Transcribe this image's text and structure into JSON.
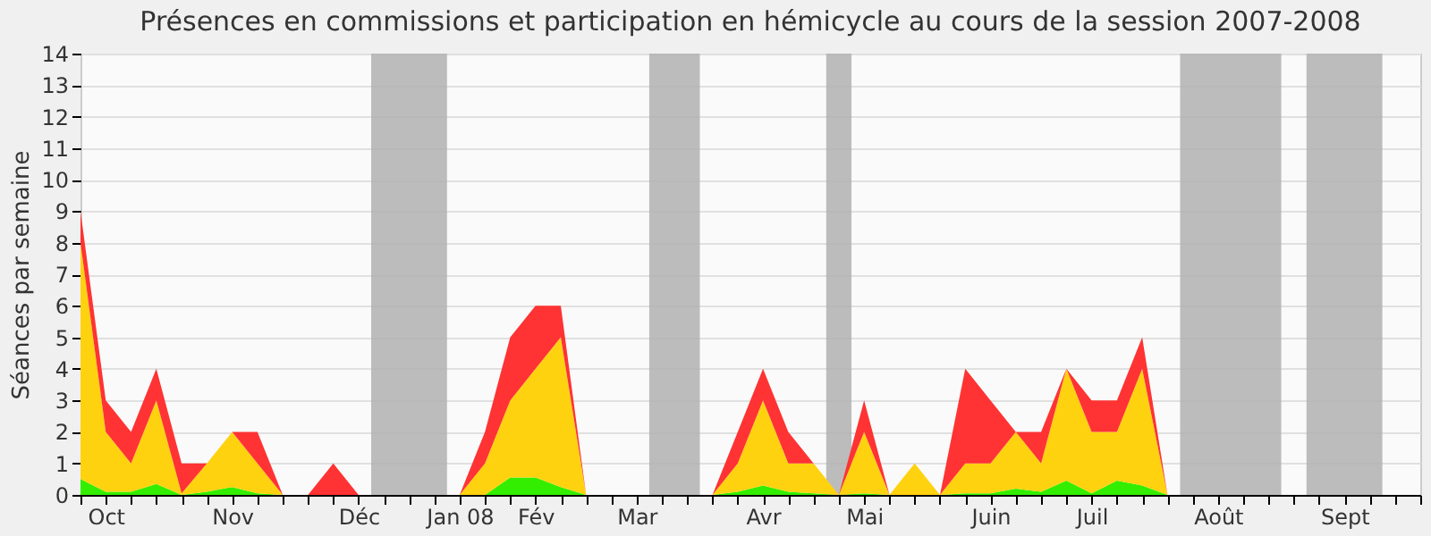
{
  "chart_data": {
    "type": "area",
    "stacked": true,
    "title": "Présences en commissions et participation en hémicycle au cours de la session 2007-2008",
    "ylabel": "Séances par semaine",
    "x": [
      "2007-10-01",
      "2007-10-08",
      "2007-10-15",
      "2007-10-22",
      "2007-10-29",
      "2007-11-05",
      "2007-11-12",
      "2007-11-19",
      "2007-11-26",
      "2007-12-03",
      "2007-12-10",
      "2007-12-17",
      "2007-12-24",
      "2007-12-31",
      "2008-01-07",
      "2008-01-14",
      "2008-01-21",
      "2008-01-28",
      "2008-02-04",
      "2008-02-11",
      "2008-02-18",
      "2008-02-25",
      "2008-03-03",
      "2008-03-10",
      "2008-03-17",
      "2008-03-24",
      "2008-03-31",
      "2008-04-07",
      "2008-04-14",
      "2008-04-21",
      "2008-04-28",
      "2008-05-05",
      "2008-05-12",
      "2008-05-19",
      "2008-05-26",
      "2008-06-02",
      "2008-06-09",
      "2008-06-16",
      "2008-06-23",
      "2008-06-30",
      "2008-07-07",
      "2008-07-14",
      "2008-07-21",
      "2008-07-28",
      "2008-08-04",
      "2008-08-11",
      "2008-08-18",
      "2008-08-25",
      "2008-09-01",
      "2008-09-08",
      "2008-09-15",
      "2008-09-22",
      "2008-09-29",
      "2008-10-06"
    ],
    "series": [
      {
        "color": "#33ee00",
        "values": [
          0.5,
          0.1,
          0.1,
          0.35,
          0,
          0.1,
          0.25,
          0.05,
          0,
          0,
          0,
          0,
          0,
          0,
          0,
          0,
          0,
          0.55,
          0.55,
          0.25,
          0,
          0,
          0,
          0,
          0,
          0,
          0.1,
          0.3,
          0.1,
          0.05,
          0,
          0.05,
          0,
          0,
          0,
          0.05,
          0.05,
          0.2,
          0.1,
          0.45,
          0.05,
          0.45,
          0.3,
          0,
          0,
          0,
          0,
          0,
          0,
          0,
          0,
          0,
          0,
          0
        ]
      },
      {
        "color": "#ffd20f",
        "values": [
          7.5,
          1.9,
          0.9,
          2.65,
          0.05,
          0.9,
          1.75,
          0.95,
          0,
          0,
          0,
          0,
          0,
          0,
          0,
          0,
          1,
          2.45,
          3.45,
          4.75,
          0,
          0,
          0,
          0,
          0,
          0,
          0.9,
          2.7,
          0.9,
          0.95,
          0,
          1.95,
          0,
          1,
          0,
          0.95,
          0.95,
          1.8,
          0.9,
          3.55,
          1.95,
          1.55,
          3.7,
          0,
          0,
          0,
          0,
          0,
          0,
          0,
          0,
          0,
          0,
          0
        ]
      },
      {
        "color": "#ff3333",
        "values": [
          1,
          1,
          1,
          1,
          0.95,
          0,
          0,
          1,
          0,
          0,
          1,
          0,
          0,
          0,
          0,
          0,
          1,
          2,
          2,
          1,
          0,
          0,
          0,
          0,
          0,
          0,
          1,
          1,
          1,
          0,
          0,
          1,
          0,
          0,
          0,
          3,
          2,
          0,
          1,
          0,
          1,
          1,
          1,
          0,
          0,
          0,
          0,
          0,
          0,
          0,
          0,
          0,
          0,
          0
        ]
      }
    ],
    "xlim": [
      "2007-10-01",
      "2008-10-06"
    ],
    "xticks": [
      {
        "value": "2007-10-01",
        "label": null
      },
      {
        "value": "2007-10-08",
        "label": "Oct"
      },
      {
        "value": "2007-10-15",
        "label": null
      },
      {
        "value": "2007-10-22",
        "label": null
      },
      {
        "value": "2007-10-29",
        "label": null
      },
      {
        "value": "2007-11-05",
        "label": null
      },
      {
        "value": "2007-11-12",
        "label": "Nov"
      },
      {
        "value": "2007-11-19",
        "label": null
      },
      {
        "value": "2007-11-26",
        "label": null
      },
      {
        "value": "2007-12-03",
        "label": null
      },
      {
        "value": "2007-12-10",
        "label": null
      },
      {
        "value": "2007-12-17",
        "label": "Déc"
      },
      {
        "value": "2007-12-24",
        "label": null
      },
      {
        "value": "2007-12-31",
        "label": null
      },
      {
        "value": "2008-01-07",
        "label": null
      },
      {
        "value": "2008-01-14",
        "label": "Jan 08"
      },
      {
        "value": "2008-01-21",
        "label": null
      },
      {
        "value": "2008-01-28",
        "label": null
      },
      {
        "value": "2008-02-04",
        "label": "Fév"
      },
      {
        "value": "2008-02-11",
        "label": null
      },
      {
        "value": "2008-02-18",
        "label": null
      },
      {
        "value": "2008-02-25",
        "label": null
      },
      {
        "value": "2008-03-03",
        "label": "Mar"
      },
      {
        "value": "2008-03-10",
        "label": null
      },
      {
        "value": "2008-03-17",
        "label": null
      },
      {
        "value": "2008-03-24",
        "label": null
      },
      {
        "value": "2008-03-31",
        "label": null
      },
      {
        "value": "2008-04-07",
        "label": "Avr"
      },
      {
        "value": "2008-04-14",
        "label": null
      },
      {
        "value": "2008-04-21",
        "label": null
      },
      {
        "value": "2008-04-28",
        "label": null
      },
      {
        "value": "2008-05-05",
        "label": "Mai"
      },
      {
        "value": "2008-05-12",
        "label": null
      },
      {
        "value": "2008-05-19",
        "label": null
      },
      {
        "value": "2008-05-26",
        "label": null
      },
      {
        "value": "2008-06-02",
        "label": null
      },
      {
        "value": "2008-06-09",
        "label": "Juin"
      },
      {
        "value": "2008-06-16",
        "label": null
      },
      {
        "value": "2008-06-23",
        "label": null
      },
      {
        "value": "2008-06-30",
        "label": null
      },
      {
        "value": "2008-07-07",
        "label": "Juil"
      },
      {
        "value": "2008-07-14",
        "label": null
      },
      {
        "value": "2008-07-21",
        "label": null
      },
      {
        "value": "2008-07-28",
        "label": null
      },
      {
        "value": "2008-08-04",
        "label": null
      },
      {
        "value": "2008-08-11",
        "label": "Août"
      },
      {
        "value": "2008-08-18",
        "label": null
      },
      {
        "value": "2008-08-25",
        "label": null
      },
      {
        "value": "2008-09-01",
        "label": null
      },
      {
        "value": "2008-09-08",
        "label": null
      },
      {
        "value": "2008-09-15",
        "label": "Sept"
      },
      {
        "value": "2008-09-22",
        "label": null
      },
      {
        "value": "2008-09-29",
        "label": null
      },
      {
        "value": "2008-10-06",
        "label": null
      }
    ],
    "ylim": [
      0,
      14
    ],
    "yticks": [
      0,
      1,
      2,
      3,
      4,
      5,
      6,
      7,
      8,
      9,
      10,
      11,
      12,
      13,
      14
    ],
    "grid": "y",
    "bands": [
      {
        "axis": "x",
        "from": "2007-12-20T12:00",
        "to": "2008-01-10T12:00",
        "color": "#b0b0b0"
      },
      {
        "axis": "x",
        "from": "2008-03-06T12:00",
        "to": "2008-03-20T12:00",
        "color": "#b0b0b0"
      },
      {
        "axis": "x",
        "from": "2008-04-24T12:00",
        "to": "2008-05-01T12:00",
        "color": "#b0b0b0"
      },
      {
        "axis": "x",
        "from": "2008-07-31T12:00",
        "to": "2008-08-28T12:00",
        "color": "#b0b0b0"
      },
      {
        "axis": "x",
        "from": "2008-09-04T12:00",
        "to": "2008-09-25T12:00",
        "color": "#b0b0b0"
      }
    ]
  }
}
